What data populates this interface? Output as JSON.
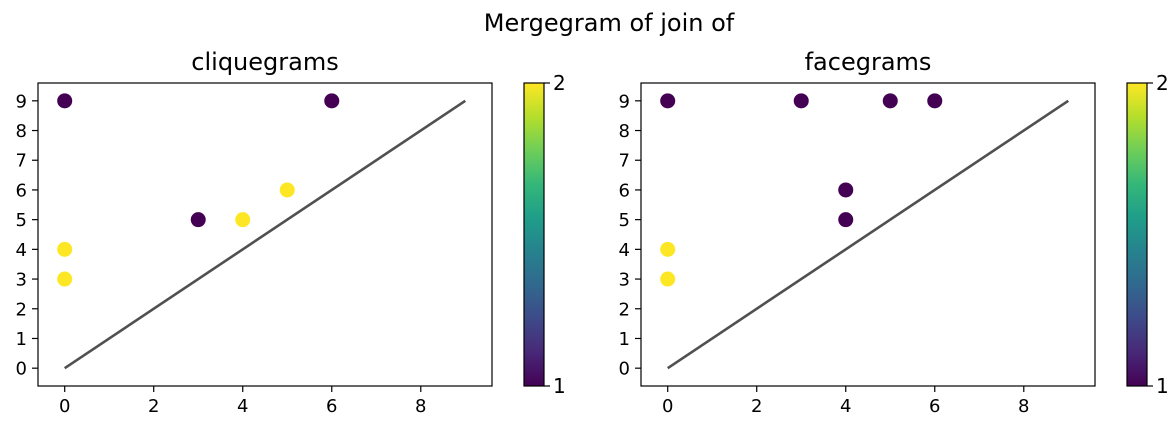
{
  "figure": {
    "suptitle": "Mergegram of join of"
  },
  "chart_data": [
    {
      "type": "scatter",
      "title": "cliquegrams",
      "xlabel": "",
      "ylabel": "",
      "xlim": [
        -0.6,
        9.6
      ],
      "ylim": [
        -0.6,
        9.6
      ],
      "xticks": [
        0,
        2,
        4,
        6,
        8
      ],
      "yticks": [
        0,
        1,
        2,
        3,
        4,
        5,
        6,
        7,
        8,
        9
      ],
      "grid": false,
      "diagonal": {
        "from": [
          0,
          0
        ],
        "to": [
          9,
          9
        ],
        "color": "#505050"
      },
      "points": [
        {
          "x": 0,
          "y": 9,
          "c": 1
        },
        {
          "x": 6,
          "y": 9,
          "c": 1
        },
        {
          "x": 3,
          "y": 5,
          "c": 1
        },
        {
          "x": 0,
          "y": 4,
          "c": 2
        },
        {
          "x": 0,
          "y": 3,
          "c": 2
        },
        {
          "x": 4,
          "y": 5,
          "c": 2
        },
        {
          "x": 5,
          "y": 6,
          "c": 2
        }
      ],
      "colorbar": {
        "min": 1,
        "max": 2,
        "ticks": [
          "1",
          "2"
        ],
        "colormap": "viridis"
      }
    },
    {
      "type": "scatter",
      "title": "facegrams",
      "xlabel": "",
      "ylabel": "",
      "xlim": [
        -0.6,
        9.6
      ],
      "ylim": [
        -0.6,
        9.6
      ],
      "xticks": [
        0,
        2,
        4,
        6,
        8
      ],
      "yticks": [
        0,
        1,
        2,
        3,
        4,
        5,
        6,
        7,
        8,
        9
      ],
      "grid": false,
      "diagonal": {
        "from": [
          0,
          0
        ],
        "to": [
          9,
          9
        ],
        "color": "#505050"
      },
      "points": [
        {
          "x": 0,
          "y": 9,
          "c": 1
        },
        {
          "x": 3,
          "y": 9,
          "c": 1
        },
        {
          "x": 5,
          "y": 9,
          "c": 1
        },
        {
          "x": 6,
          "y": 9,
          "c": 1
        },
        {
          "x": 4,
          "y": 6,
          "c": 1
        },
        {
          "x": 4,
          "y": 5,
          "c": 1
        },
        {
          "x": 0,
          "y": 4,
          "c": 2
        },
        {
          "x": 0,
          "y": 3,
          "c": 2
        }
      ],
      "colorbar": {
        "min": 1,
        "max": 2,
        "ticks": [
          "1",
          "2"
        ],
        "colormap": "viridis"
      }
    }
  ],
  "colors": {
    "low": "#440154",
    "high": "#fde725",
    "viridis_stops": [
      "#440154",
      "#482878",
      "#3e4a89",
      "#31688e",
      "#26828e",
      "#1f9e89",
      "#35b779",
      "#6ece58",
      "#b5de2b",
      "#fde725"
    ]
  }
}
